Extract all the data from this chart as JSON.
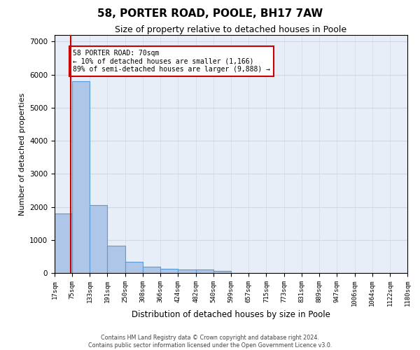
{
  "title": "58, PORTER ROAD, POOLE, BH17 7AW",
  "subtitle": "Size of property relative to detached houses in Poole",
  "xlabel": "Distribution of detached houses by size in Poole",
  "ylabel": "Number of detached properties",
  "bin_edges": [
    17,
    75,
    133,
    191,
    250,
    308,
    366,
    424,
    482,
    540,
    599,
    657,
    715,
    773,
    831,
    889,
    947,
    1006,
    1064,
    1122,
    1180
  ],
  "bar_heights": [
    1800,
    5800,
    2050,
    830,
    340,
    190,
    120,
    100,
    100,
    70,
    0,
    0,
    0,
    0,
    0,
    0,
    0,
    0,
    0,
    0
  ],
  "bar_color": "#aec6e8",
  "bar_edgecolor": "#5b9bd5",
  "bar_linewidth": 0.8,
  "vline_x": 70,
  "vline_color": "#cc0000",
  "vline_linewidth": 1.5,
  "annotation_text": "58 PORTER ROAD: 70sqm\n← 10% of detached houses are smaller (1,166)\n89% of semi-detached houses are larger (9,888) →",
  "ylim": [
    0,
    7200
  ],
  "xlim": [
    17,
    1180
  ],
  "yticks": [
    0,
    1000,
    2000,
    3000,
    4000,
    5000,
    6000,
    7000
  ],
  "grid_color": "#d0d8e8",
  "background_color": "#e8eef8",
  "footer_line1": "Contains HM Land Registry data © Crown copyright and database right 2024.",
  "footer_line2": "Contains public sector information licensed under the Open Government Licence v3.0.",
  "annotation_boxcolor": "white",
  "annotation_edgecolor": "#cc0000",
  "title_fontsize": 11,
  "subtitle_fontsize": 9,
  "tick_fontsize": 6.5,
  "ylabel_fontsize": 8,
  "xlabel_fontsize": 8.5,
  "annotation_fontsize": 7
}
